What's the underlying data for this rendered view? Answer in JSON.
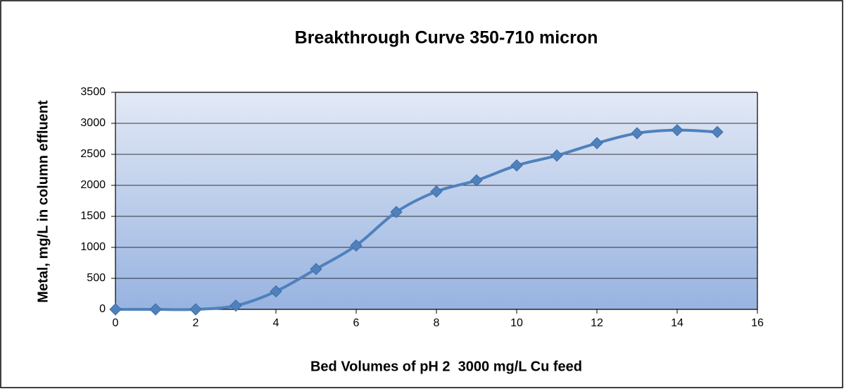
{
  "chart_data": {
    "type": "line",
    "title": "Breakthrough Curve 350-710 micron",
    "x_label": "Bed Volumes of pH 2  3000 mg/L Cu feed",
    "y_label": "Metal, mg/L in column effluent",
    "x": [
      0,
      1,
      2,
      3,
      4,
      5,
      6,
      7,
      8,
      9,
      10,
      11,
      12,
      13,
      14,
      15
    ],
    "values": [
      0,
      0,
      0,
      60,
      290,
      650,
      1030,
      1570,
      1900,
      2080,
      2320,
      2480,
      2680,
      2840,
      2890,
      2860
    ],
    "color": "#4f81bd",
    "xlim": [
      0,
      16
    ],
    "xticks": [
      0,
      2,
      4,
      6,
      8,
      10,
      12,
      14,
      16
    ],
    "ylim": [
      0,
      3500
    ],
    "yticks": [
      0,
      500,
      1000,
      1500,
      2000,
      2500,
      3000,
      3500
    ],
    "grid": true,
    "smooth": true
  }
}
